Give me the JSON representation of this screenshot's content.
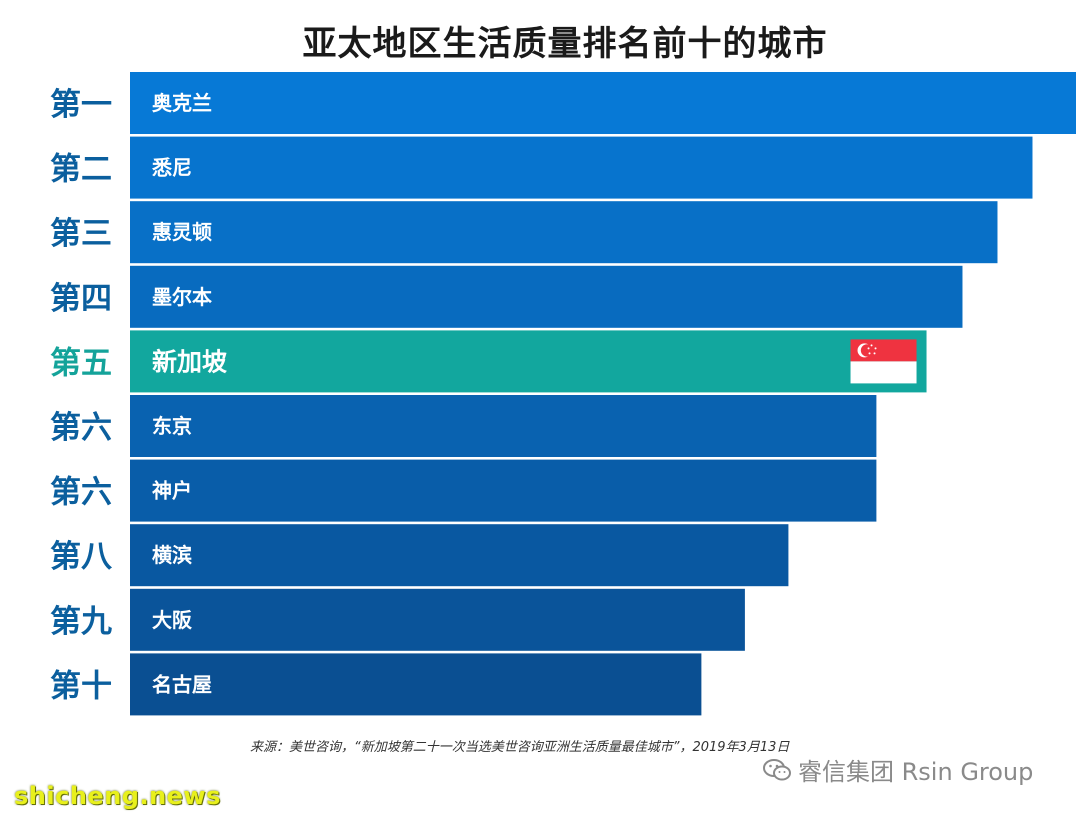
{
  "chart_data": {
    "type": "bar",
    "orientation": "horizontal",
    "title": "亚太地区生活质量排名前十的城市",
    "ranks": [
      "第一",
      "第二",
      "第三",
      "第四",
      "第五",
      "第六",
      "第六",
      "第八",
      "第九",
      "第十"
    ],
    "categories": [
      "奥克兰",
      "悉尼",
      "惠灵顿",
      "墨尔本",
      "新加坡",
      "东京",
      "神户",
      "横滨",
      "大阪",
      "名古屋"
    ],
    "values": [
      100,
      95.4,
      91.7,
      88.0,
      84.2,
      78.9,
      78.9,
      69.6,
      65.0,
      60.4
    ],
    "highlight": "新加坡",
    "highlight_icon": "singapore-flag-icon",
    "colors": {
      "bar_gradient_start": "#0779d6",
      "bar_gradient_end": "#0a4f92",
      "highlight": "#12a79e",
      "rank_text": "#0b5f9e",
      "highlight_rank_text": "#14a39a"
    }
  },
  "source_text": "来源：美世咨询，“新加坡第二十一次当选美世咨询亚洲生活质量最佳城市”，2019年3月13日",
  "watermark": {
    "icon": "wechat-icon",
    "text": "睿信集团 Rsin Group"
  },
  "site_watermark": "shicheng.news"
}
